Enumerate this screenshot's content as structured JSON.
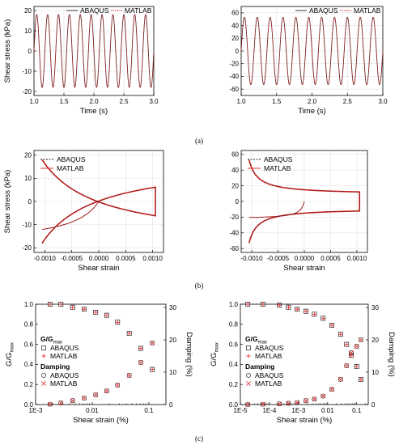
{
  "colors": {
    "abaqus": "#222222",
    "matlab": "#e01f1f",
    "grid": "#e3e3e3"
  },
  "captions": [
    "(a)",
    "(b)",
    "(c)"
  ],
  "chart_data": [
    {
      "id": "a-left",
      "type": "line",
      "xlabel": "Time (s)",
      "ylabel": "Shear stress (kPa)",
      "xlim": [
        1.0,
        3.0
      ],
      "ylim": [
        -22,
        22
      ],
      "xticks": [
        1.0,
        1.5,
        2.0,
        2.5,
        3.0
      ],
      "xtick_labels": [
        "1.0",
        "1.5",
        "2.0",
        "2.5",
        "3.0"
      ],
      "yticks": [
        -20,
        -10,
        0,
        10,
        20
      ],
      "ytick_labels": [
        "-20",
        "-10",
        "0",
        "10",
        "20"
      ],
      "legend": "top-right",
      "legend_layout": "horizontal",
      "signal": {
        "amplitude": 18,
        "frequency_hz": 5.5,
        "t_start": 1.0,
        "t_end": 3.0
      },
      "series": [
        {
          "name": "ABAQUS",
          "style": "solid"
        },
        {
          "name": "MATLAB",
          "style": "dotted"
        }
      ],
      "grid": true
    },
    {
      "id": "a-right",
      "type": "line",
      "xlabel": "Time (s)",
      "ylabel": "",
      "xlim": [
        1.0,
        3.0
      ],
      "ylim": [
        -70,
        70
      ],
      "xticks": [
        1.0,
        1.5,
        2.0,
        2.5,
        3.0
      ],
      "xtick_labels": [
        "1.0",
        "1.5",
        "2.0",
        "2.5",
        "3.0"
      ],
      "yticks": [
        -60,
        -40,
        -20,
        0,
        20,
        40,
        60
      ],
      "ytick_labels": [
        "-60",
        "-40",
        "-20",
        "0",
        "20",
        "40",
        "60"
      ],
      "legend": "top-right",
      "legend_layout": "horizontal",
      "signal": {
        "amplitude": 53,
        "frequency_hz": 5.5,
        "t_start": 1.0,
        "t_end": 3.0
      },
      "series": [
        {
          "name": "ABAQUS",
          "style": "solid"
        },
        {
          "name": "MATLAB",
          "style": "dotted"
        }
      ],
      "grid": true
    },
    {
      "id": "b-left",
      "type": "line",
      "xlabel": "Shear strain",
      "ylabel": "Shear stress (kPa)",
      "xlim": [
        -0.0012,
        0.0012
      ],
      "ylim": [
        -22,
        22
      ],
      "xticks": [
        -0.001,
        -0.0005,
        0.0,
        0.0005,
        0.001
      ],
      "xtick_labels": [
        "-0.0010",
        "-0.0005",
        "0.0000",
        "0.0005",
        "0.0010"
      ],
      "yticks": [
        -20,
        -10,
        0,
        10,
        20
      ],
      "ytick_labels": [
        "-20",
        "-10",
        "0",
        "10",
        "20"
      ],
      "legend": "top-left",
      "legend_layout": "vertical",
      "hysteresis": {
        "gamma_max": 0.00105,
        "tau_max": 18,
        "gmax": 35000,
        "tref": 18
      },
      "series": [
        {
          "name": "ABAQUS",
          "style": "dashed"
        },
        {
          "name": "MATLAB",
          "style": "solid"
        }
      ],
      "grid": true
    },
    {
      "id": "b-right",
      "type": "line",
      "xlabel": "Shear strain",
      "ylabel": "",
      "xlim": [
        -0.0012,
        0.0012
      ],
      "ylim": [
        -65,
        65
      ],
      "xticks": [
        -0.001,
        -0.0005,
        0.0,
        0.0005,
        0.001
      ],
      "xtick_labels": [
        "-0.0010",
        "-0.0005",
        "0.0000",
        "0.0005",
        "0.0010"
      ],
      "yticks": [
        -60,
        -40,
        -20,
        0,
        20,
        40,
        60
      ],
      "ytick_labels": [
        "-60",
        "-40",
        "-20",
        "0",
        "20",
        "40",
        "60"
      ],
      "legend": "top-left",
      "legend_layout": "vertical",
      "hysteresis": {
        "gamma_max": 0.00105,
        "tau_max": 53,
        "gmax": 270000,
        "tref": 22
      },
      "series": [
        {
          "name": "ABAQUS",
          "style": "dashed"
        },
        {
          "name": "MATLAB",
          "style": "solid"
        }
      ],
      "grid": true
    },
    {
      "id": "c-left",
      "type": "scatter",
      "xlabel": "Shear strain (%)",
      "ylabel": "G/G",
      "ylabel_sub": "max",
      "y2label": "Damping (%)",
      "xscale": "log",
      "xlim": [
        0.001,
        0.2
      ],
      "xticks": [
        0.001,
        0.01,
        0.1
      ],
      "xtick_labels": [
        "1E-3",
        "0.01",
        "0.1"
      ],
      "ylim": [
        0,
        1.0
      ],
      "yticks": [
        0.0,
        0.2,
        0.4,
        0.6,
        0.8,
        1.0
      ],
      "ytick_labels": [
        "0.0",
        "0.2",
        "0.4",
        "0.6",
        "0.8",
        "1.0"
      ],
      "y2lim": [
        0,
        31
      ],
      "y2ticks": [
        0,
        10,
        20,
        30
      ],
      "y2tick_labels": [
        "0",
        "10",
        "20",
        "30"
      ],
      "legend": "left",
      "legend_groups": [
        {
          "title": "G/G",
          "title_sub": "max",
          "entries": [
            {
              "name": "ABAQUS",
              "marker": "square"
            },
            {
              "name": "MATLAB",
              "marker": "plus"
            }
          ]
        },
        {
          "title": "Damping",
          "entries": [
            {
              "name": "ABAQUS",
              "marker": "circle"
            },
            {
              "name": "MATLAB",
              "marker": "x"
            }
          ]
        }
      ],
      "x": [
        0.0018,
        0.0028,
        0.0045,
        0.0072,
        0.0115,
        0.018,
        0.028,
        0.045,
        0.072,
        0.115
      ],
      "modulus": [
        1.0,
        1.0,
        0.97,
        0.95,
        0.92,
        0.89,
        0.82,
        0.71,
        0.56,
        0.35
      ],
      "damping": [
        0.1,
        0.5,
        1.2,
        2.0,
        3.0,
        4.2,
        6.0,
        9.0,
        13.0,
        19.0
      ],
      "grid": false
    },
    {
      "id": "c-right",
      "type": "scatter",
      "xlabel": "Shear strain (%)",
      "ylabel": "G/G",
      "ylabel_sub": "max",
      "y2label": "Damping (%)",
      "xscale": "log",
      "xlim": [
        1e-05,
        0.25
      ],
      "xticks": [
        1e-05,
        0.0001,
        0.001,
        0.01,
        0.1
      ],
      "xtick_labels": [
        "1E-5",
        "1E-4",
        "1E-3",
        "0.01",
        "0.1"
      ],
      "ylim": [
        0,
        1.0
      ],
      "yticks": [
        0.0,
        0.2,
        0.4,
        0.6,
        0.8,
        1.0
      ],
      "ytick_labels": [
        "0.0",
        "0.2",
        "0.4",
        "0.6",
        "0.8",
        "1.0"
      ],
      "y2lim": [
        0,
        31
      ],
      "y2ticks": [
        0,
        10,
        20,
        30
      ],
      "y2tick_labels": [
        "0",
        "10",
        "20",
        "30"
      ],
      "legend": "left",
      "legend_groups": [
        {
          "title": "G/G",
          "title_sub": "max",
          "entries": [
            {
              "name": "ABAQUS",
              "marker": "square"
            },
            {
              "name": "MATLAB",
              "marker": "plus"
            }
          ]
        },
        {
          "title": "Damping",
          "entries": [
            {
              "name": "ABAQUS",
              "marker": "circle"
            },
            {
              "name": "MATLAB",
              "marker": "x"
            }
          ]
        }
      ],
      "x": [
        1.8e-05,
        6e-05,
        0.00022,
        0.00045,
        0.0009,
        0.0018,
        0.0035,
        0.007,
        0.014,
        0.028,
        0.045,
        0.065,
        0.1,
        0.14
      ],
      "modulus": [
        1.0,
        1.0,
        0.99,
        0.97,
        0.95,
        0.93,
        0.9,
        0.86,
        0.79,
        0.7,
        0.6,
        0.49,
        0.38,
        0.25
      ],
      "damping": [
        0.0,
        0.1,
        0.2,
        0.4,
        0.6,
        1.2,
        1.7,
        2.6,
        4.7,
        7.8,
        12.0,
        16.0,
        18.0,
        20.0
      ],
      "grid": false
    }
  ]
}
